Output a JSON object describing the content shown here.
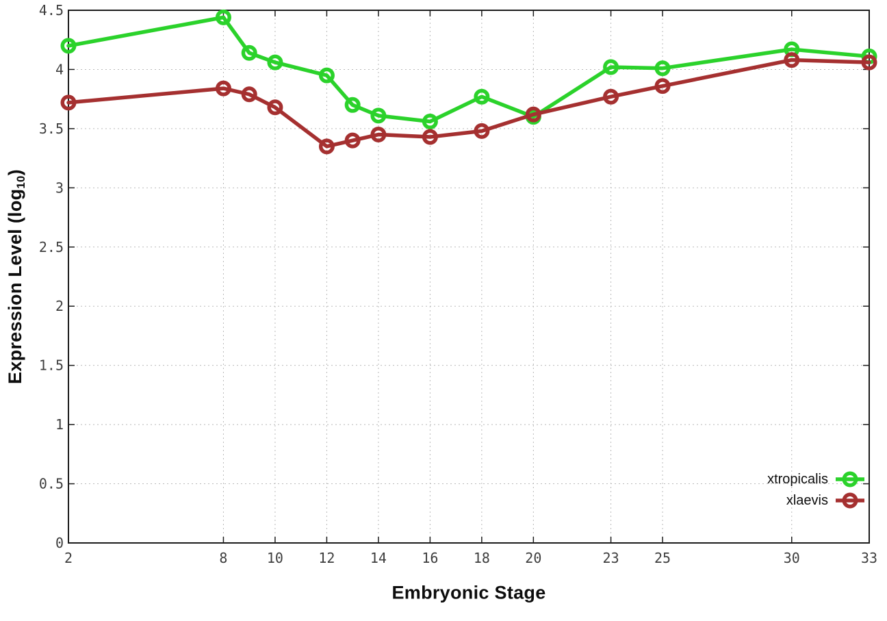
{
  "chart_data": {
    "type": "line",
    "title": "",
    "xlabel": "Embryonic Stage",
    "ylabel": {
      "prefix": "Expression Level (log",
      "sub": "10",
      "suffix": ")"
    },
    "xlim": [
      2,
      33
    ],
    "ylim": [
      0,
      4.5
    ],
    "grid": true,
    "legend_position": "bottom-right",
    "x": [
      2,
      8,
      9,
      10,
      12,
      13,
      14,
      16,
      18,
      20,
      23,
      25,
      30,
      33
    ],
    "xticks": {
      "values": [
        2,
        8,
        10,
        12,
        14,
        16,
        18,
        20,
        23,
        25,
        30,
        33
      ],
      "labels": [
        "2",
        "8",
        "10",
        "12",
        "14",
        "16",
        "18",
        "20",
        "23",
        "25",
        "30",
        "33"
      ]
    },
    "yticks": {
      "values": [
        0,
        0.5,
        1,
        1.5,
        2,
        2.5,
        3,
        3.5,
        4,
        4.5
      ],
      "labels": [
        "0",
        "0.5",
        "1",
        "1.5",
        "2",
        "2.5",
        "3",
        "3.5",
        "4",
        "4.5"
      ]
    },
    "series": [
      {
        "name": "xtropicalis",
        "color": "#2bd22b",
        "values": [
          4.2,
          4.44,
          4.14,
          4.06,
          3.95,
          3.7,
          3.61,
          3.56,
          3.77,
          3.6,
          4.02,
          4.01,
          4.17,
          4.11
        ]
      },
      {
        "name": "xlaevis",
        "color": "#a53030",
        "values": [
          3.72,
          3.84,
          3.79,
          3.68,
          3.35,
          3.4,
          3.45,
          3.43,
          3.48,
          3.62,
          3.77,
          3.86,
          4.08,
          4.06
        ]
      }
    ]
  },
  "colors": {
    "background": "#ffffff",
    "axis": "#1c1c1c",
    "grid": "#b9b9b9",
    "tick_text": "#3d3d3d"
  }
}
